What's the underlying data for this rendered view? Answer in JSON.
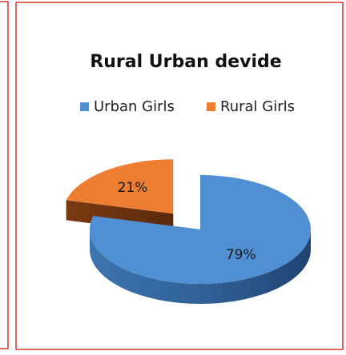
{
  "chart_data": {
    "type": "pie3d",
    "title": "Rural Urban devide",
    "categories": [
      "Urban Girls",
      "Rural Girls"
    ],
    "values": [
      79,
      21
    ],
    "value_labels": [
      "79%",
      "21%"
    ],
    "colors": [
      "#4f8fd2",
      "#ed7d31"
    ],
    "exploded": [
      false,
      true
    ],
    "legend": "top"
  }
}
